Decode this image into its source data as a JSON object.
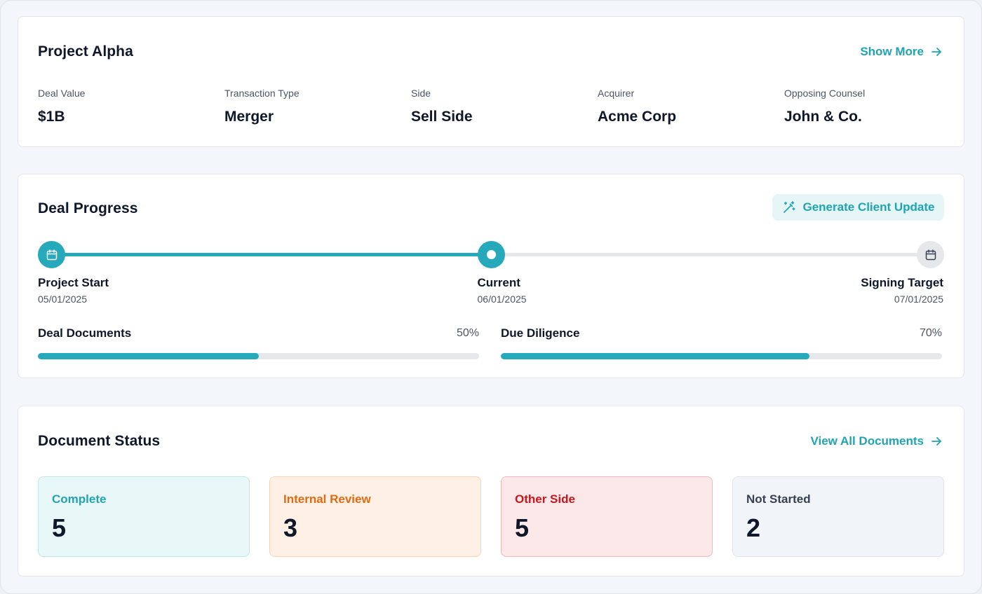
{
  "project": {
    "title": "Project Alpha",
    "show_more_label": "Show More",
    "fields": [
      {
        "label": "Deal Value",
        "value": "$1B"
      },
      {
        "label": "Transaction Type",
        "value": "Merger"
      },
      {
        "label": "Side",
        "value": "Sell Side"
      },
      {
        "label": "Acquirer",
        "value": "Acme Corp"
      },
      {
        "label": "Opposing Counsel",
        "value": "John & Co."
      }
    ]
  },
  "progress": {
    "title": "Deal Progress",
    "generate_label": "Generate Client Update",
    "timeline_fraction": 0.5,
    "milestones": [
      {
        "label": "Project Start",
        "date": "05/01/2025"
      },
      {
        "label": "Current",
        "date": "06/01/2025"
      },
      {
        "label": "Signing Target",
        "date": "07/01/2025"
      }
    ],
    "bars": [
      {
        "name": "Deal Documents",
        "percent_label": "50%",
        "percent": 50
      },
      {
        "name": "Due Diligence",
        "percent_label": "70%",
        "percent": 70
      }
    ],
    "accent_color": "#26a9ba"
  },
  "documents": {
    "title": "Document Status",
    "view_all_label": "View All Documents",
    "statuses": [
      {
        "label": "Complete",
        "count": "5",
        "color": "#1fa4b4",
        "bg": "#e8f7f8",
        "border": "#bfe7eb"
      },
      {
        "label": "Internal Review",
        "count": "3",
        "color": "#e26a12",
        "bg": "#fff0e6",
        "border": "#fbd3b4"
      },
      {
        "label": "Other Side",
        "count": "5",
        "color": "#c8161d",
        "bg": "#fce8e9",
        "border": "#f3b6b9"
      },
      {
        "label": "Not Started",
        "count": "2",
        "color": "#374151",
        "bg": "#f1f4f8",
        "border": "#dfe4ea"
      }
    ]
  },
  "icons": {
    "show_more": "arrow-right-icon",
    "generate": "magic-wand-icon",
    "start_node": "calendar-icon",
    "end_node": "calendar-icon",
    "view_all": "arrow-right-icon"
  }
}
